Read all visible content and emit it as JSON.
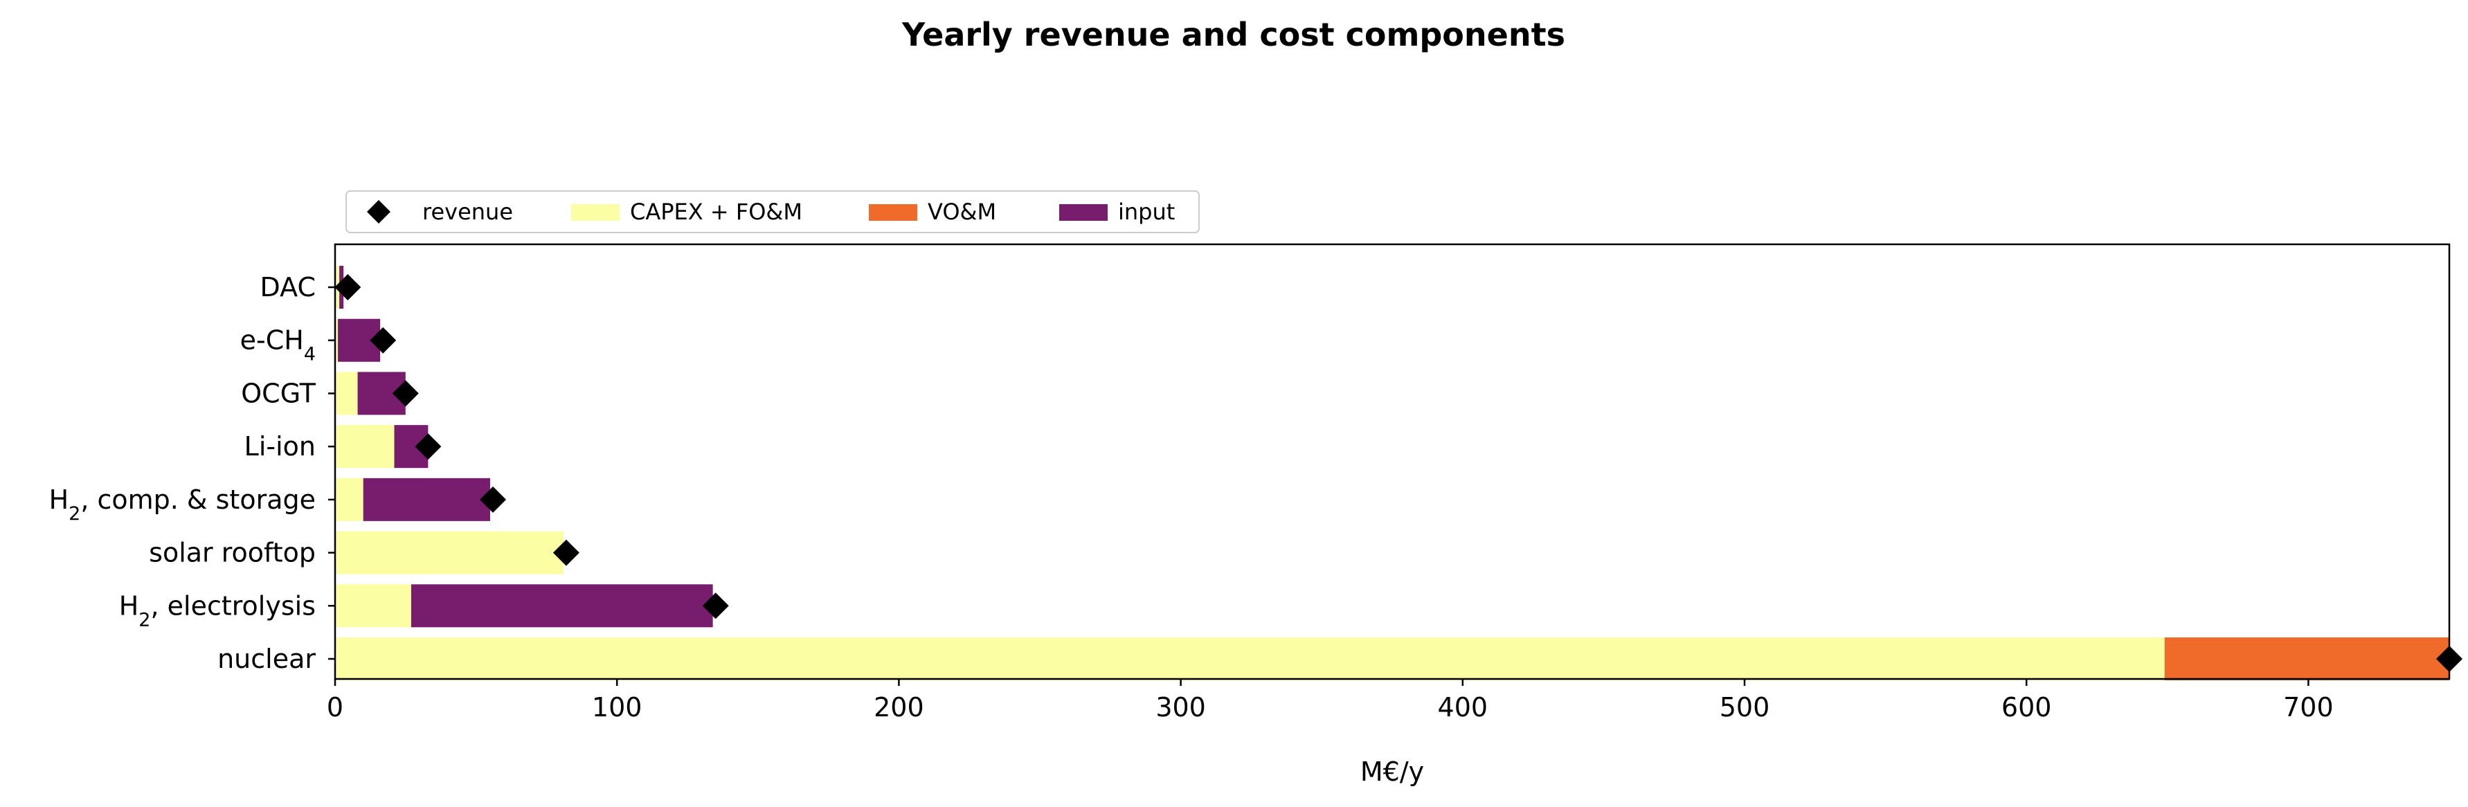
{
  "chart_data": {
    "type": "bar",
    "orientation": "horizontal",
    "stacked": true,
    "title": "Yearly revenue and cost components",
    "xlabel": "M€/y",
    "ylabel": "",
    "xlim": [
      0,
      750
    ],
    "xticks": [
      0,
      100,
      200,
      300,
      400,
      500,
      600,
      700
    ],
    "legend_position": "top-left, above axes",
    "categories": [
      {
        "main": "DAC"
      },
      {
        "main": "e-CH",
        "sub": "4"
      },
      {
        "main": "OCGT"
      },
      {
        "main": "Li-ion"
      },
      {
        "main": "H",
        "sub": "2",
        "rest": ", comp. & storage"
      },
      {
        "main": "solar rooftop"
      },
      {
        "main": "H",
        "sub": "2",
        "rest": ", electrolysis"
      },
      {
        "main": "nuclear"
      }
    ],
    "series": [
      {
        "name": "CAPEX + FO&M",
        "color": "#fcfea4",
        "values": [
          1.5,
          1,
          8,
          21,
          10,
          81,
          27,
          649
        ]
      },
      {
        "name": "VO&M",
        "color": "#f06b2a",
        "values": [
          0,
          0,
          0,
          0,
          0,
          0,
          0,
          101
        ]
      },
      {
        "name": "input",
        "color": "#781c6d",
        "values": [
          1.5,
          15,
          17,
          12,
          45,
          0,
          107,
          0
        ]
      }
    ],
    "revenue": {
      "name": "revenue",
      "color": "#000000",
      "values": [
        4.5,
        17,
        25,
        33,
        56,
        82,
        135,
        750
      ]
    },
    "legend_order": [
      "revenue",
      "CAPEX + FO&M",
      "VO&M",
      "input"
    ]
  }
}
